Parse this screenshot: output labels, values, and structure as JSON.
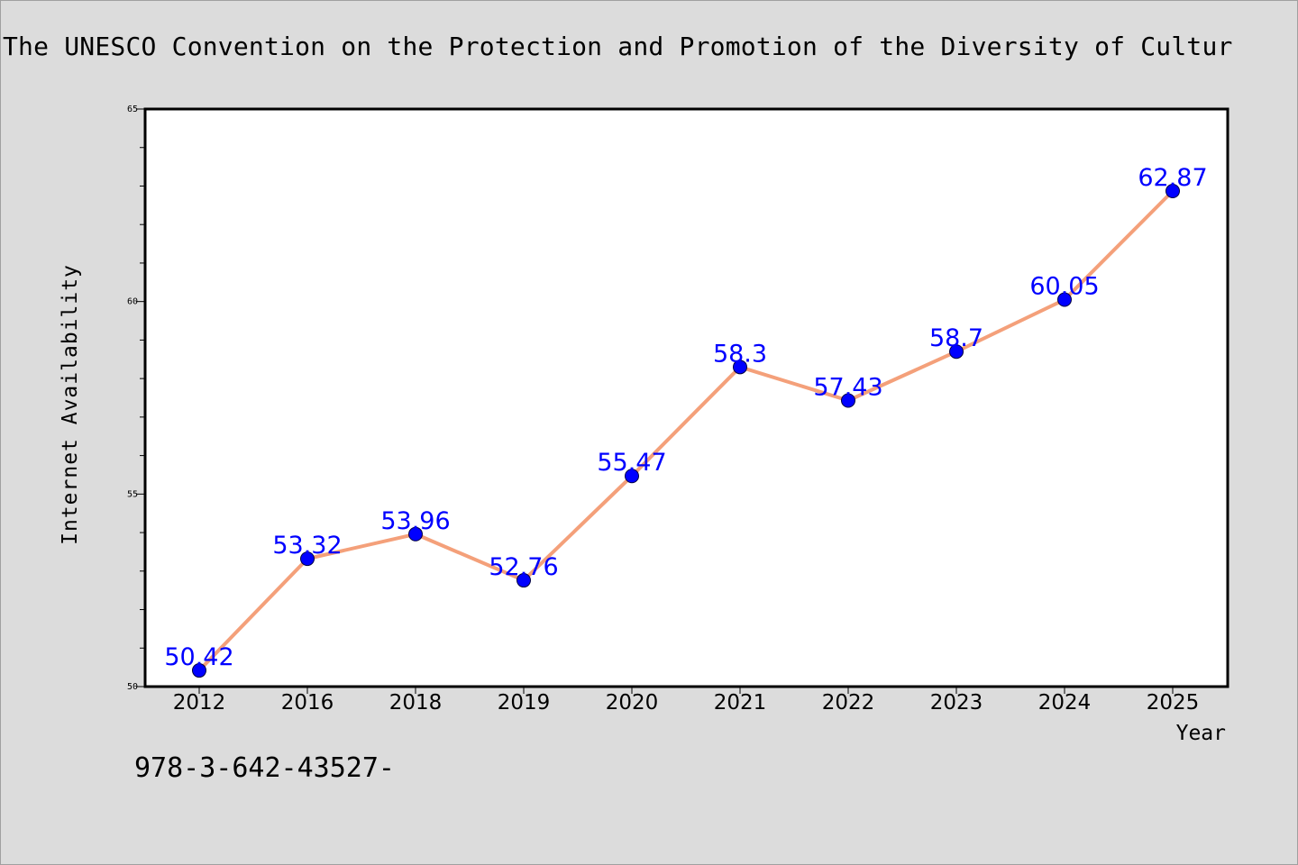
{
  "title": "The UNESCO Convention on the Protection and Promotion of the Diversity of Cultur",
  "footer": "978-3-642-43527-",
  "colors": {
    "background": "#dcdcdc",
    "plot_area": "#ffffff",
    "line": "#f4a07a",
    "marker": "#0000ff",
    "data_label": "#0000ff"
  },
  "chart_data": {
    "type": "line",
    "categories": [
      "2012",
      "2016",
      "2018",
      "2019",
      "2020",
      "2021",
      "2022",
      "2023",
      "2024",
      "2025"
    ],
    "values": [
      50.42,
      53.32,
      53.96,
      52.76,
      55.47,
      58.3,
      57.43,
      58.7,
      60.05,
      62.87
    ],
    "data_labels": [
      "50.42",
      "53.32",
      "53.96",
      "52.76",
      "55.47",
      "58.3",
      "57.43",
      "58.7",
      "60.05",
      "62.87"
    ],
    "xlabel": "Year",
    "ylabel": "Internet Availability",
    "ylim": [
      50,
      65
    ],
    "yticks": [
      "50",
      "55",
      "60",
      "65"
    ],
    "grid": false,
    "legend": "none"
  }
}
